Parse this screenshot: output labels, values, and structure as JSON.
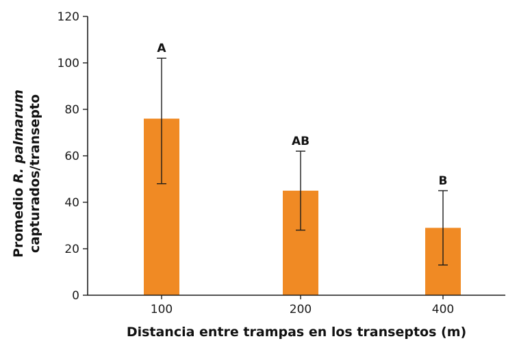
{
  "chart_data": {
    "type": "bar",
    "categories": [
      "100",
      "200",
      "400"
    ],
    "values": [
      76,
      45,
      29
    ],
    "error_bars": {
      "lower": [
        48,
        28,
        13
      ],
      "upper": [
        102,
        62,
        45
      ]
    },
    "significance_labels": [
      "A",
      "AB",
      "B"
    ],
    "ylim": [
      0,
      120
    ],
    "yticks": [
      "0",
      "20",
      "40",
      "60",
      "80",
      "100",
      "120"
    ],
    "xlabel": "Distancia entre trampas en los transeptos (m)",
    "ylabel": {
      "prefix": "Promedio ",
      "italic": "R. palmarum",
      "line2": "capturados/transepto"
    },
    "grid": false,
    "colors": {
      "bar": "#f08a24",
      "error_bar": "#1a1a1a",
      "axis": "#1a1a1a"
    }
  }
}
